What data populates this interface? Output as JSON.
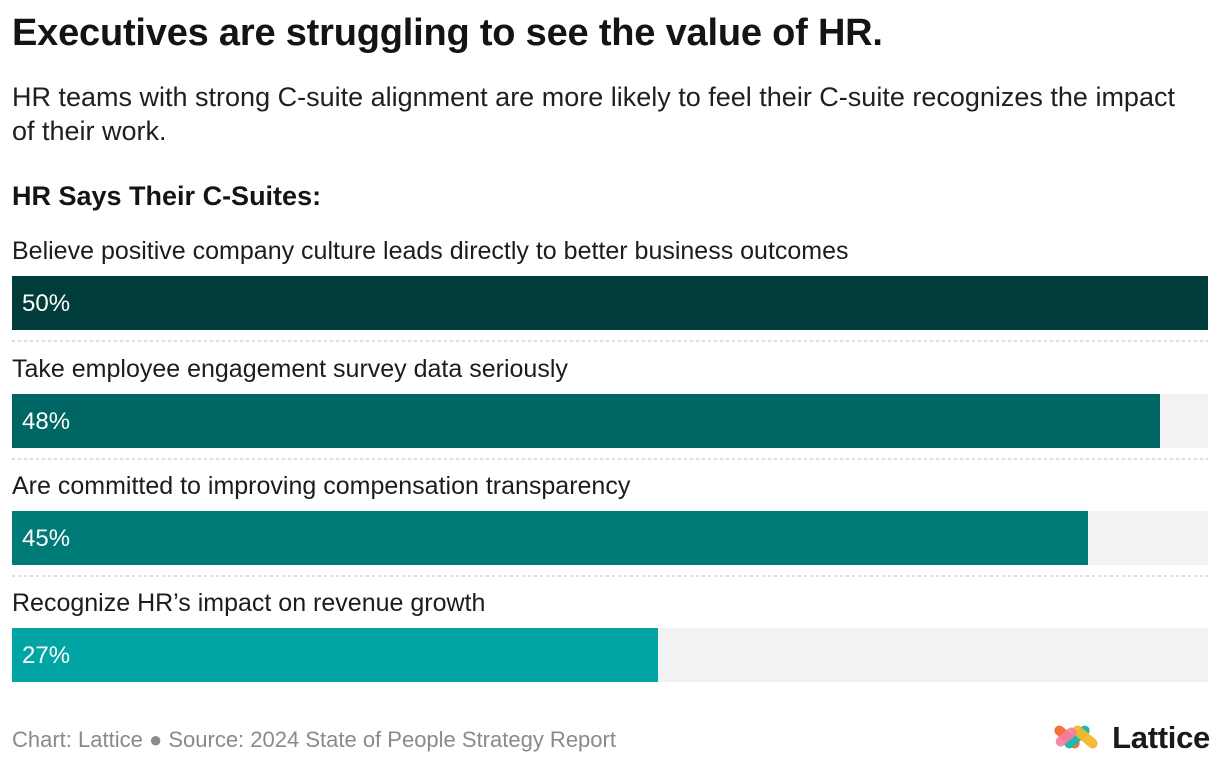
{
  "header": {
    "title": "Executives are struggling to see the value of HR.",
    "subtitle": "HR teams with strong C-suite alignment are more likely to feel their C-suite recognizes the impact of their work.",
    "section_heading": "HR Says Their C-Suites:"
  },
  "chart_data": {
    "type": "bar",
    "orientation": "horizontal",
    "title": "HR Says Their C-Suites:",
    "categories": [
      "Believe positive company culture leads directly to better business outcomes",
      "Take employee engagement survey data seriously",
      "Are committed to improving compensation transparency",
      "Recognize HR’s impact on revenue growth"
    ],
    "values": [
      50,
      48,
      45,
      27
    ],
    "value_labels": [
      "50%",
      "48%",
      "45%",
      "27%"
    ],
    "xlim": [
      0,
      50
    ],
    "unit": "%",
    "bar_colors": [
      "#003d3a",
      "#006663",
      "#007a77",
      "#00a5a4"
    ],
    "track_color": "#f2f2f2",
    "separator_color": "#d3d3d3"
  },
  "footer": {
    "credit": "Chart: Lattice ● Source: 2024 State of People Strategy Report"
  },
  "brand": {
    "name": "Lattice",
    "logo_icon": "lattice-logo-icon",
    "logo_colors": [
      "#f36f3b",
      "#f7b52c",
      "#1fb9ac",
      "#f47ea0"
    ]
  }
}
